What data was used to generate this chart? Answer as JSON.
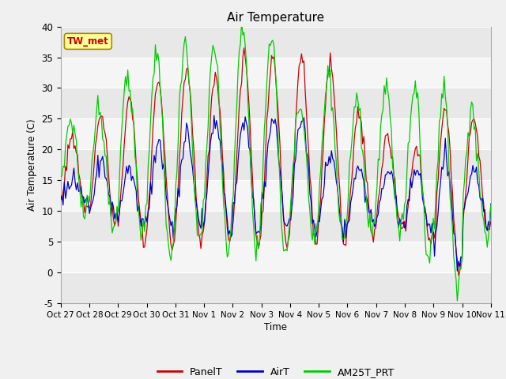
{
  "title": "Air Temperature",
  "ylabel": "Air Temperature (C)",
  "xlabel": "Time",
  "ylim": [
    -5,
    40
  ],
  "yticks": [
    -5,
    0,
    5,
    10,
    15,
    20,
    25,
    30,
    35,
    40
  ],
  "xtick_labels": [
    "Oct 27",
    "Oct 28",
    "Oct 29",
    "Oct 30",
    "Oct 31",
    "Nov 1",
    "Nov 2",
    "Nov 3",
    "Nov 4",
    "Nov 5",
    "Nov 6",
    "Nov 7",
    "Nov 8",
    "Nov 9",
    "Nov 10",
    "Nov 11"
  ],
  "site_label": "TW_met",
  "site_label_bg": "#FFFF99",
  "site_label_border": "#CC0000",
  "legend_entries": [
    "PanelT",
    "AirT",
    "AM25T_PRT"
  ],
  "line_colors": [
    "#CC0000",
    "#0000CC",
    "#00CC00"
  ],
  "fig_bg": "#f0f0f0",
  "band_colors": [
    "#e8e8e8",
    "#f5f5f5"
  ],
  "n_days": 15,
  "day_peaks_panel": [
    22,
    26,
    28,
    31,
    33,
    32,
    35,
    35,
    35,
    34,
    26,
    22,
    20,
    27,
    25
  ],
  "day_peaks_air": [
    15,
    18,
    17,
    21,
    22,
    25,
    25,
    25,
    25,
    19,
    17,
    17,
    17,
    19,
    16
  ],
  "day_peaks_am25": [
    25,
    27,
    32,
    36,
    37,
    37,
    40,
    39,
    27,
    32,
    27,
    30,
    31,
    30,
    26
  ],
  "night_mins_panel": [
    10,
    8,
    5,
    4,
    5,
    5,
    4,
    4,
    5,
    5,
    6,
    7,
    5,
    0,
    7
  ],
  "night_mins_air": [
    12,
    9,
    8,
    7,
    8,
    7,
    6,
    7,
    7,
    7,
    8,
    8,
    7,
    1,
    8
  ],
  "night_mins_am25": [
    10,
    8,
    6,
    3,
    5,
    4,
    3,
    3,
    5,
    5,
    6,
    6,
    2,
    -3,
    6
  ]
}
